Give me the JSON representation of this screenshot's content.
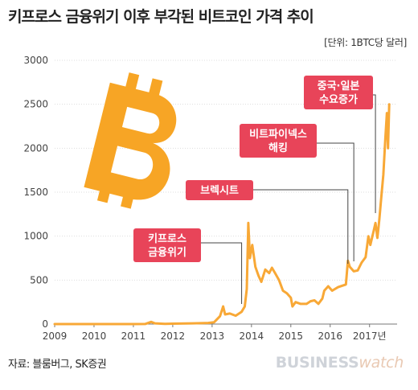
{
  "title": "키프로스 금융위기 이후 부각된 비트코인 가격 추이",
  "unit_label": "[단위: 1BTC당 달러]",
  "source": "자료: 블룸버그, SK증권",
  "logo": {
    "part1": "BUSINESS",
    "part2": "watch"
  },
  "colors": {
    "line": "#f8a836",
    "callout": "#e84459",
    "bitcoin": "#f7a525",
    "axis": "#777777",
    "grid": "#dddddd"
  },
  "icon": "bitcoin-icon",
  "chart_data": {
    "type": "line",
    "title": "키프로스 금융위기 이후 부각된 비트코인 가격 추이",
    "unit": "[단위: 1BTC당 달러]",
    "ylim": [
      0,
      3000
    ],
    "xlim": [
      2009,
      2017.7
    ],
    "y_ticks": [
      0,
      500,
      1000,
      1500,
      2000,
      2500,
      3000
    ],
    "x_ticks": [
      "2009",
      "2010",
      "2011",
      "2012",
      "2013",
      "2014",
      "2015",
      "2016",
      "2017년"
    ],
    "grid": "horizontal",
    "series": [
      {
        "points": [
          [
            2009.0,
            0
          ],
          [
            2010.0,
            0
          ],
          [
            2010.5,
            0.1
          ],
          [
            2011.0,
            0.3
          ],
          [
            2011.3,
            1
          ],
          [
            2011.45,
            25
          ],
          [
            2011.55,
            8
          ],
          [
            2011.8,
            3
          ],
          [
            2012.0,
            5
          ],
          [
            2012.5,
            8
          ],
          [
            2012.9,
            13
          ],
          [
            2013.05,
            20
          ],
          [
            2013.2,
            90
          ],
          [
            2013.28,
            200
          ],
          [
            2013.33,
            110
          ],
          [
            2013.45,
            120
          ],
          [
            2013.6,
            95
          ],
          [
            2013.75,
            140
          ],
          [
            2013.83,
            200
          ],
          [
            2013.88,
            400
          ],
          [
            2013.92,
            1150
          ],
          [
            2013.96,
            750
          ],
          [
            2014.02,
            900
          ],
          [
            2014.1,
            650
          ],
          [
            2014.18,
            550
          ],
          [
            2014.25,
            480
          ],
          [
            2014.35,
            620
          ],
          [
            2014.45,
            580
          ],
          [
            2014.52,
            640
          ],
          [
            2014.6,
            580
          ],
          [
            2014.7,
            500
          ],
          [
            2014.8,
            380
          ],
          [
            2014.9,
            350
          ],
          [
            2015.0,
            300
          ],
          [
            2015.04,
            200
          ],
          [
            2015.12,
            250
          ],
          [
            2015.25,
            230
          ],
          [
            2015.4,
            230
          ],
          [
            2015.5,
            260
          ],
          [
            2015.6,
            270
          ],
          [
            2015.7,
            230
          ],
          [
            2015.8,
            290
          ],
          [
            2015.85,
            380
          ],
          [
            2015.95,
            430
          ],
          [
            2016.05,
            380
          ],
          [
            2016.2,
            420
          ],
          [
            2016.4,
            450
          ],
          [
            2016.45,
            720
          ],
          [
            2016.5,
            650
          ],
          [
            2016.6,
            600
          ],
          [
            2016.7,
            610
          ],
          [
            2016.8,
            700
          ],
          [
            2016.9,
            760
          ],
          [
            2016.97,
            1000
          ],
          [
            2017.02,
            900
          ],
          [
            2017.1,
            1050
          ],
          [
            2017.15,
            1150
          ],
          [
            2017.2,
            980
          ],
          [
            2017.25,
            1200
          ],
          [
            2017.3,
            1450
          ],
          [
            2017.35,
            1700
          ],
          [
            2017.4,
            2100
          ],
          [
            2017.44,
            2400
          ],
          [
            2017.47,
            2000
          ],
          [
            2017.5,
            2500
          ]
        ]
      }
    ],
    "annotations": [
      {
        "lines": [
          "키프로스",
          "금융위기"
        ],
        "x": 2013.75
      },
      {
        "lines": [
          "브렉시트"
        ],
        "x": 2016.45
      },
      {
        "lines": [
          "비트파이넥스",
          "해킹"
        ],
        "x": 2016.6
      },
      {
        "lines": [
          "중국·일본",
          "수요증가"
        ],
        "x": 2017.15
      }
    ]
  }
}
